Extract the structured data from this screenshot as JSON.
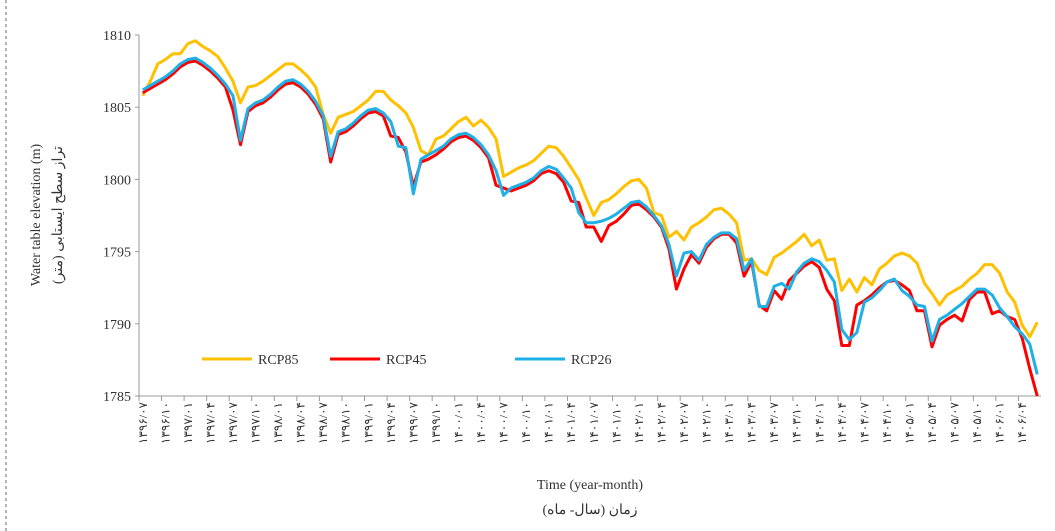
{
  "chart_data": {
    "type": "line",
    "y_title": [
      "Water table elevation (m)",
      "تراز سطح ایستابی (متر)"
    ],
    "x_title": [
      "Time (year-month)",
      "زمان (سال- ماه)"
    ],
    "categories": [
      "۱۳۹۶/۰۷",
      null,
      null,
      "۱۳۹۶/۱۰",
      null,
      null,
      "۱۳۹۷/۰۱",
      null,
      null,
      "۱۳۹۷/۰۴",
      null,
      null,
      "۱۳۹۷/۰۷",
      null,
      null,
      "۱۳۹۷/۱۰",
      null,
      null,
      "۱۳۹۸/۰۱",
      null,
      null,
      "۱۳۹۸/۰۴",
      null,
      null,
      "۱۳۹۸/۰۷",
      null,
      null,
      "۱۳۹۸/۱۰",
      null,
      null,
      "۱۳۹۹/۰۱",
      null,
      null,
      "۱۳۹۹/۰۴",
      null,
      null,
      "۱۳۹۹/۰۷",
      null,
      null,
      "۱۳۹۹/۱۰",
      null,
      null,
      "۱۴۰۰/۰۱",
      null,
      null,
      "۱۴۰۰/۰۴",
      null,
      null,
      "۱۴۰۰/۰۷",
      null,
      null,
      "۱۴۰۰/۱۰",
      null,
      null,
      "۱۴۰۱/۰۱",
      null,
      null,
      "۱۴۰۱/۰۴",
      null,
      null,
      "۱۴۰۱/۰۷",
      null,
      null,
      "۱۴۰۱/۱۰",
      null,
      null,
      "۱۴۰۲/۰۱",
      null,
      null,
      "۱۴۰۲/۰۴",
      null,
      null,
      "۱۴۰۲/۰۷",
      null,
      null,
      "۱۴۰۲/۱۰",
      null,
      null,
      "۱۴۰۳/۰۱",
      null,
      null,
      "۱۴۰۳/۰۴",
      null,
      null,
      "۱۴۰۳/۰۷",
      null,
      null,
      "۱۴۰۳/۱۰",
      null,
      null,
      "۱۴۰۴/۰۱",
      null,
      null,
      "۱۴۰۴/۰۴",
      null,
      null,
      "۱۴۰۴/۰۷",
      null,
      null,
      "۱۴۰۴/۱۰",
      null,
      null,
      "۱۴۰۵/۰۱",
      null,
      null,
      "۱۴۰۵/۰۴",
      null,
      null,
      "۱۴۰۵/۰۷",
      null,
      null,
      "۱۴۰۵/۱۰",
      null,
      null,
      "۱۴۰۶/۰۱",
      null,
      null,
      "۱۴۰۶/۰۴",
      null,
      null
    ],
    "series": [
      {
        "name": "RCP85",
        "color": "#ffc000",
        "values": [
          1805.8,
          1806.8,
          1808,
          1808.3,
          1808.7,
          1808.7,
          1809.4,
          1809.6,
          1809.2,
          1808.9,
          1808.5,
          1807.7,
          1806.8,
          1805.3,
          1806.4,
          1806.5,
          1806.8,
          1807.2,
          1807.6,
          1808,
          1808,
          1807.6,
          1807.1,
          1806.4,
          1804.5,
          1803.2,
          1804.3,
          1804.5,
          1804.7,
          1805.1,
          1805.5,
          1806.1,
          1806.1,
          1805.5,
          1805.1,
          1804.6,
          1803.6,
          1802,
          1801.7,
          1802.8,
          1803,
          1803.5,
          1804,
          1804.3,
          1803.7,
          1804.1,
          1803.6,
          1802.8,
          1800.2,
          1800.5,
          1800.8,
          1801,
          1801.3,
          1801.8,
          1802.3,
          1802.2,
          1801.6,
          1800.8,
          1800,
          1798.7,
          1797.5,
          1798.4,
          1798.6,
          1799,
          1799.5,
          1799.9,
          1800,
          1799.4,
          1797.7,
          1797.5,
          1796,
          1796.4,
          1795.8,
          1796.7,
          1797,
          1797.4,
          1797.9,
          1798,
          1797.6,
          1797,
          1794.4,
          1794.5,
          1793.7,
          1793.4,
          1794.6,
          1794.9,
          1795.3,
          1795.7,
          1796.2,
          1795.4,
          1795.8,
          1794.4,
          1794.5,
          1792.3,
          1793.1,
          1792.2,
          1793.2,
          1792.7,
          1793.8,
          1794.2,
          1794.7,
          1794.9,
          1794.7,
          1794.2,
          1792.8,
          1792.1,
          1791.3,
          1792,
          1792.3,
          1792.6,
          1793.1,
          1793.5,
          1794.1,
          1794.1,
          1793.5,
          1792.2,
          1791.5,
          1789.9,
          1789.1,
          1790.1
        ]
      },
      {
        "name": "RCP45",
        "color": "#ff0000",
        "values": [
          1806,
          1806.3,
          1806.6,
          1806.9,
          1807.3,
          1807.8,
          1808.1,
          1808.2,
          1807.9,
          1807.5,
          1807,
          1806.4,
          1804.8,
          1802.4,
          1804.7,
          1805.1,
          1805.3,
          1805.7,
          1806.2,
          1806.6,
          1806.7,
          1806.4,
          1805.9,
          1805.2,
          1804.2,
          1801.2,
          1803.1,
          1803.3,
          1803.7,
          1804.2,
          1804.6,
          1804.7,
          1804.4,
          1803,
          1802.9,
          1801.9,
          1799.5,
          1801.2,
          1801.4,
          1801.7,
          1802.1,
          1802.6,
          1802.9,
          1803,
          1802.7,
          1802.2,
          1801.5,
          1799.6,
          1799.4,
          1799.2,
          1799.4,
          1799.6,
          1799.9,
          1800.4,
          1800.6,
          1800.4,
          1799.8,
          1798.5,
          1798.4,
          1796.7,
          1796.7,
          1795.7,
          1796.8,
          1797.1,
          1797.6,
          1798.2,
          1798.3,
          1797.9,
          1797.4,
          1796.7,
          1795.2,
          1792.4,
          1793.8,
          1794.8,
          1794.2,
          1795.3,
          1795.9,
          1796.2,
          1796.2,
          1795.6,
          1793.3,
          1794.3,
          1791.3,
          1790.9,
          1792.3,
          1791.7,
          1793,
          1793.5,
          1794,
          1794.3,
          1793.9,
          1792.4,
          1791.6,
          1788.5,
          1788.5,
          1791.3,
          1791.6,
          1792,
          1792.5,
          1792.9,
          1793,
          1792.7,
          1792.3,
          1790.9,
          1790.9,
          1788.4,
          1789.9,
          1790.3,
          1790.6,
          1790.2,
          1791.7,
          1792.2,
          1792.2,
          1790.7,
          1790.9,
          1790.5,
          1790.3,
          1789,
          1786.9,
          1785
        ]
      },
      {
        "name": "RCP26",
        "color": "#1eb0e6",
        "values": [
          1806.2,
          1806.5,
          1806.8,
          1807.1,
          1807.5,
          1808,
          1808.3,
          1808.4,
          1808.1,
          1807.7,
          1807.2,
          1806.6,
          1805.8,
          1802.7,
          1804.9,
          1805.3,
          1805.5,
          1805.9,
          1806.4,
          1806.8,
          1806.9,
          1806.6,
          1806.1,
          1805.4,
          1804.4,
          1801.6,
          1803.3,
          1803.5,
          1803.9,
          1804.4,
          1804.8,
          1804.9,
          1804.6,
          1804,
          1802.3,
          1802.2,
          1799,
          1801.4,
          1801.7,
          1802,
          1802.3,
          1802.8,
          1803.1,
          1803.2,
          1802.9,
          1802.4,
          1801.7,
          1800.6,
          1798.9,
          1799.4,
          1799.6,
          1799.8,
          1800.1,
          1800.6,
          1800.9,
          1800.7,
          1800.1,
          1799.4,
          1797.7,
          1797,
          1797,
          1797.1,
          1797.3,
          1797.6,
          1798,
          1798.4,
          1798.5,
          1798.1,
          1797.5,
          1796.8,
          1795.5,
          1793.3,
          1794.9,
          1795,
          1794.4,
          1795.5,
          1796,
          1796.3,
          1796.3,
          1795.9,
          1793.7,
          1794.5,
          1791.2,
          1791.2,
          1792.6,
          1792.8,
          1792.4,
          1793.6,
          1794.2,
          1794.5,
          1794.3,
          1793.7,
          1792.9,
          1789.6,
          1788.9,
          1789.4,
          1791.5,
          1791.8,
          1792.3,
          1792.9,
          1793.1,
          1792.3,
          1791.9,
          1791.3,
          1791.2,
          1788.8,
          1790.3,
          1790.6,
          1791,
          1791.4,
          1791.9,
          1792.4,
          1792.4,
          1792,
          1791.1,
          1790.5,
          1789.8,
          1789.3,
          1788.6,
          1786.5
        ]
      }
    ],
    "ylim": [
      1785,
      1810
    ],
    "yticks": [
      1785,
      1790,
      1795,
      1800,
      1805,
      1810
    ],
    "grid": false
  }
}
